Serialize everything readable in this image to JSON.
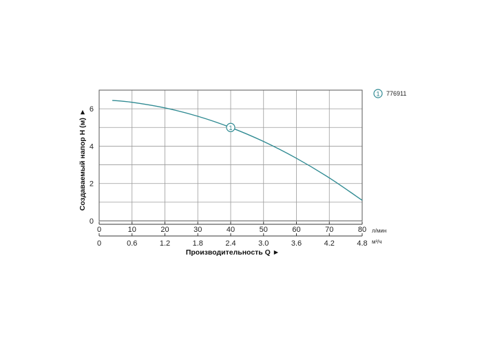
{
  "chart_data": {
    "type": "line",
    "title": "",
    "ylabel": "Создаваемый напор H (м) ►",
    "xlabel": "Производительность Q ►",
    "ylim": [
      0,
      7
    ],
    "yticks": [
      0,
      2,
      4,
      6
    ],
    "xlim": [
      0,
      80
    ],
    "x_primary_ticks": [
      0,
      10,
      20,
      30,
      40,
      50,
      60,
      70,
      80
    ],
    "x_primary_unit": "л/мин",
    "x_secondary_ticks": [
      "0",
      "0.6",
      "1.2",
      "1.8",
      "2.4",
      "3.0",
      "3.6",
      "4.2",
      "4.8"
    ],
    "x_secondary_unit": "м³/ч",
    "grid": true,
    "legend_position": "top-right",
    "series": [
      {
        "name": "776911",
        "marker_label": "1",
        "marker_at_x": 40,
        "color": "#2f8a92",
        "x": [
          4,
          10,
          20,
          30,
          40,
          50,
          60,
          70,
          80
        ],
        "y": [
          6.45,
          6.35,
          6.05,
          5.6,
          5.0,
          4.25,
          3.35,
          2.3,
          1.1
        ]
      }
    ]
  }
}
